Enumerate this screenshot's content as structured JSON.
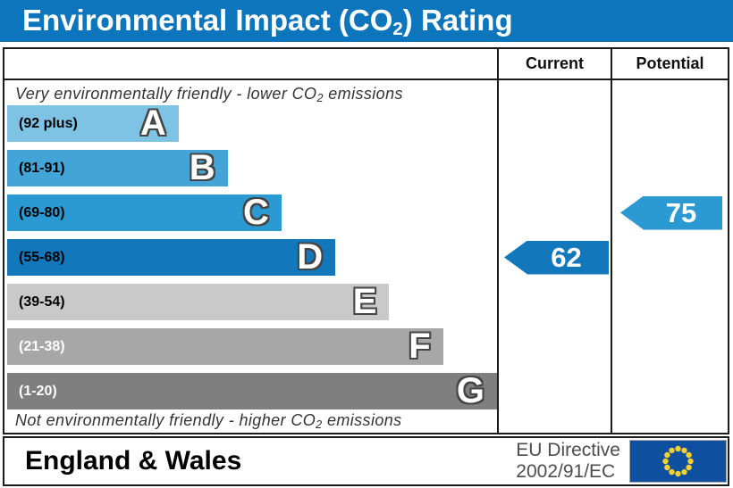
{
  "title": {
    "pre": "Environmental Impact (CO",
    "sub": "2",
    "post": ") Rating"
  },
  "colors": {
    "header_blue": "#0d75bb",
    "border": "#1b1b1b"
  },
  "header": {
    "current": "Current",
    "potential": "Potential"
  },
  "chart_data": {
    "type": "bar",
    "title": "Environmental Impact (CO2) Rating",
    "top_annotation": {
      "pre": "Very environmentally friendly - lower CO",
      "sub": "2",
      "post": " emissions"
    },
    "bottom_annotation": {
      "pre": "Not environmentally friendly - higher CO",
      "sub": "2",
      "post": " emissions"
    },
    "bands": [
      {
        "letter": "A",
        "label": "(92 plus)",
        "range": [
          92,
          100
        ],
        "color": "#7fc3e4",
        "label_color": "#000000",
        "width_pct": 35
      },
      {
        "letter": "B",
        "label": "(81-91)",
        "range": [
          81,
          91
        ],
        "color": "#43a4d7",
        "label_color": "#000000",
        "width_pct": 45
      },
      {
        "letter": "C",
        "label": "(69-80)",
        "range": [
          69,
          80
        ],
        "color": "#2b9ad3",
        "label_color": "#000000",
        "width_pct": 56
      },
      {
        "letter": "D",
        "label": "(55-68)",
        "range": [
          55,
          68
        ],
        "color": "#1377bb",
        "label_color": "#000000",
        "width_pct": 67
      },
      {
        "letter": "E",
        "label": "(39-54)",
        "range": [
          39,
          54
        ],
        "color": "#c9c9c9",
        "label_color": "#000000",
        "width_pct": 78
      },
      {
        "letter": "F",
        "label": "(21-38)",
        "range": [
          21,
          38
        ],
        "color": "#a7a7a7",
        "label_color": "#ffffff",
        "width_pct": 89
      },
      {
        "letter": "G",
        "label": "(1-20)",
        "range": [
          1,
          20
        ],
        "color": "#7f7f7f",
        "label_color": "#ffffff",
        "width_pct": 100
      }
    ],
    "current": {
      "value": 62,
      "band": "D",
      "color": "#1377bb"
    },
    "potential": {
      "value": 75,
      "band": "C",
      "color": "#2b9ad3"
    }
  },
  "footer": {
    "region": "England & Wales",
    "directive_line1": "EU Directive",
    "directive_line2": "2002/91/EC",
    "flag_blue": "#0e4f9f",
    "star_yellow": "#f8d12e"
  }
}
